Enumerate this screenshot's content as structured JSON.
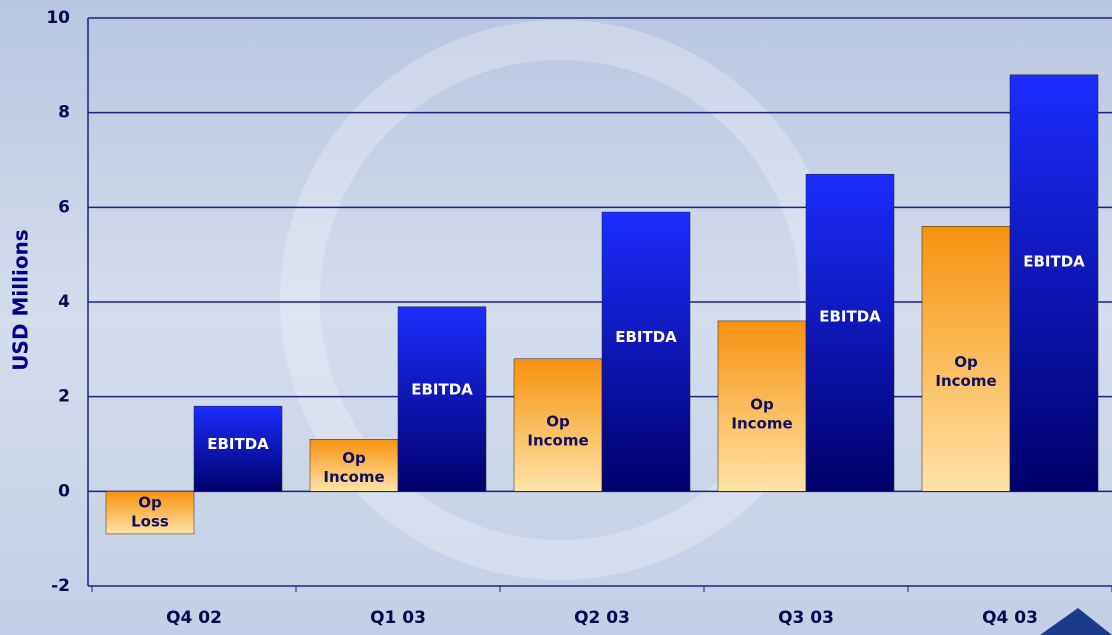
{
  "chart_data": {
    "type": "bar",
    "y_label": "USD Millions",
    "categories": [
      "Q4 02",
      "Q1 03",
      "Q2 03",
      "Q3 03",
      "Q4 03"
    ],
    "series": [
      {
        "color": "#f7920f",
        "color2": "#ffe3a8",
        "values": [
          -0.9,
          1.1,
          2.8,
          3.6,
          5.6
        ],
        "bar_labels": [
          [
            "Op",
            "Loss"
          ],
          [
            "Op",
            "Income"
          ],
          [
            "Op",
            "Income"
          ],
          [
            "Op",
            "Income"
          ],
          [
            "Op",
            "Income"
          ]
        ]
      },
      {
        "color": "#1c2cff",
        "color2": "#00006a",
        "values": [
          1.8,
          3.9,
          5.9,
          6.7,
          8.8
        ],
        "bar_labels": [
          [
            "EBITDA"
          ],
          [
            "EBITDA"
          ],
          [
            "EBITDA"
          ],
          [
            "EBITDA"
          ],
          [
            "EBITDA"
          ]
        ]
      }
    ],
    "ylim": [
      -2,
      10
    ],
    "yticks": [
      -2,
      0,
      2,
      4,
      6,
      8,
      10
    ],
    "grid": true
  }
}
